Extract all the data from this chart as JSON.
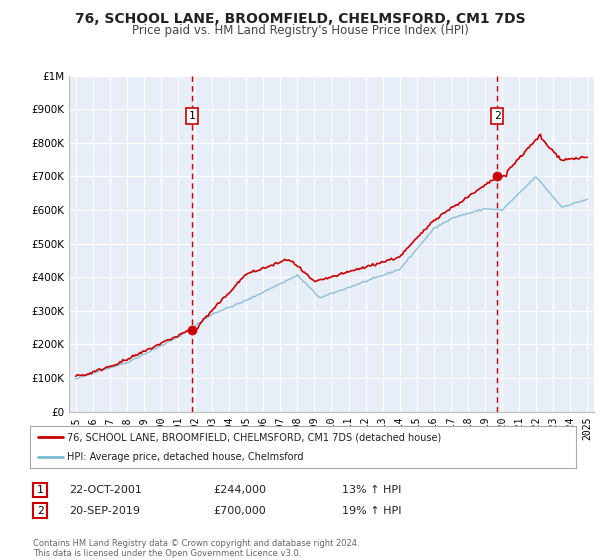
{
  "title": "76, SCHOOL LANE, BROOMFIELD, CHELMSFORD, CM1 7DS",
  "subtitle": "Price paid vs. HM Land Registry's House Price Index (HPI)",
  "title_fontsize": 10,
  "subtitle_fontsize": 8.5,
  "background_color": "#ffffff",
  "plot_bg_color": "#e8eef8",
  "grid_color": "#ffffff",
  "red_line_color": "#cc0000",
  "blue_line_color": "#7ab8d4",
  "marker1_date_x": 2001.8,
  "marker2_date_x": 2019.72,
  "marker1_y": 244000,
  "marker2_y": 700000,
  "vline_color": "#cc0000",
  "annotation_box_color": "#cc0000",
  "ylim_min": 0,
  "ylim_max": 1000000,
  "xlim_min": 1994.6,
  "xlim_max": 2025.4,
  "legend_label_red": "76, SCHOOL LANE, BROOMFIELD, CHELMSFORD, CM1 7DS (detached house)",
  "legend_label_blue": "HPI: Average price, detached house, Chelmsford",
  "note1_label": "1",
  "note1_date": "22-OCT-2001",
  "note1_price": "£244,000",
  "note1_hpi": "13% ↑ HPI",
  "note2_label": "2",
  "note2_date": "20-SEP-2019",
  "note2_price": "£700,000",
  "note2_hpi": "19% ↑ HPI",
  "footer_text": "Contains HM Land Registry data © Crown copyright and database right 2024.\nThis data is licensed under the Open Government Licence v3.0.",
  "yticks": [
    0,
    100000,
    200000,
    300000,
    400000,
    500000,
    600000,
    700000,
    800000,
    900000,
    1000000
  ],
  "ytick_labels": [
    "£0",
    "£100K",
    "£200K",
    "£300K",
    "£400K",
    "£500K",
    "£600K",
    "£700K",
    "£800K",
    "£900K",
    "£1M"
  ]
}
